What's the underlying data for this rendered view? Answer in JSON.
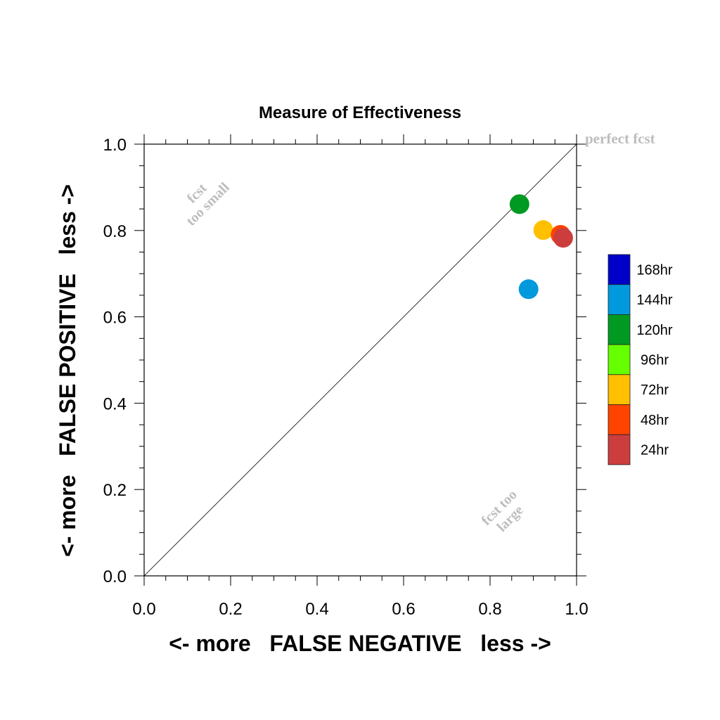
{
  "chart_data": {
    "type": "scatter",
    "title": "Measure of Effectiveness",
    "xlabel": "<- more   FALSE NEGATIVE   less ->",
    "ylabel": "<- more   FALSE POSITIVE   less ->",
    "xlim": [
      0.0,
      1.0
    ],
    "ylim": [
      0.0,
      1.0
    ],
    "x_ticks": [
      "0.0",
      "0.2",
      "0.4",
      "0.6",
      "0.8",
      "1.0"
    ],
    "y_ticks": [
      "0.0",
      "0.2",
      "0.4",
      "0.6",
      "0.8",
      "1.0"
    ],
    "diagonal_line": true,
    "annotations": {
      "perfect": "perfect fcst",
      "too_small_line1": "fcst",
      "too_small_line2": "too small",
      "too_large_line1": "fcst too",
      "too_large_line2": "large"
    },
    "legend": {
      "placement": "right",
      "entries": [
        {
          "label": "168hr",
          "color": "#0000C8"
        },
        {
          "label": "144hr",
          "color": "#0099DD"
        },
        {
          "label": "120hr",
          "color": "#009922"
        },
        {
          "label": "96hr",
          "color": "#66FF00"
        },
        {
          "label": "72hr",
          "color": "#FFC000"
        },
        {
          "label": "48hr",
          "color": "#FF4400"
        },
        {
          "label": "24hr",
          "color": "#CC3D3D"
        }
      ]
    },
    "series": [
      {
        "name": "24hr",
        "x": 0.969,
        "y": 0.783,
        "color": "#CC3D3D"
      },
      {
        "name": "48hr",
        "x": 0.963,
        "y": 0.79,
        "color": "#FF4400"
      },
      {
        "name": "72hr",
        "x": 0.923,
        "y": 0.801,
        "color": "#FFC000"
      },
      {
        "name": "120hr",
        "x": 0.868,
        "y": 0.861,
        "color": "#009922"
      },
      {
        "name": "144hr",
        "x": 0.889,
        "y": 0.664,
        "color": "#0099DD"
      }
    ]
  }
}
